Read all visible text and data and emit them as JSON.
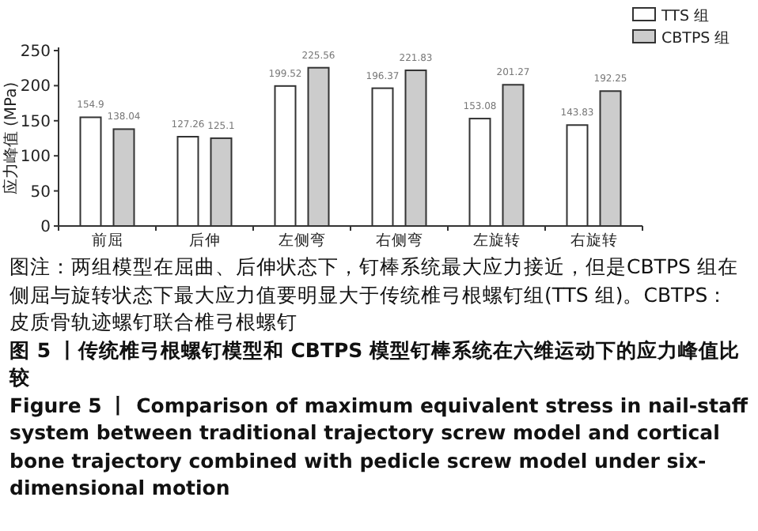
{
  "chart_data": {
    "type": "bar",
    "ylabel": "应力峰值 (MPa)",
    "categories": [
      "前屈",
      "后伸",
      "左侧弯",
      "右侧弯",
      "左旋转",
      "右旋转"
    ],
    "series": [
      {
        "name": "TTS 组",
        "color": "#ffffff",
        "values": [
          154.9,
          127.26,
          199.52,
          196.37,
          153.08,
          143.83
        ]
      },
      {
        "name": "CBTPS 组",
        "color": "#cccccc",
        "values": [
          138.04,
          125.1,
          225.56,
          221.83,
          201.27,
          192.25
        ]
      }
    ],
    "ylim": [
      0,
      250
    ],
    "yticks": [
      0,
      50,
      100,
      150,
      200,
      250
    ],
    "data_labels": true,
    "legend": "top right",
    "annotations": [
      "图注：两组模型在屈曲、后伸状态下，钉棒系统最大应力接近，但是CBTPS 组在侧屈与旋转状态下最大应力值要明显大于传统椎弓根螺钉组(TTS 组)。CBTPS：皮质骨轨迹螺钉联合椎弓根螺钉",
      "图 5 丨传统椎弓根螺钉模型和 CBTPS 模型钉棒系统在六维运动下的应力峰值比较",
      "Figure 5 丨 Comparison of maximum equivalent stress in nail-staff system between traditional trajectory screw model and cortical bone trajectory combined with pedicle screw model under six-dimensional motion"
    ]
  }
}
